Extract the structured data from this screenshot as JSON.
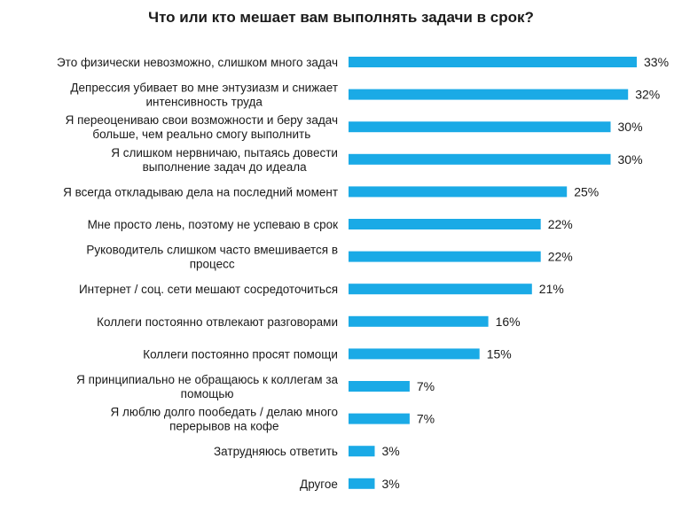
{
  "chart_data": {
    "type": "bar",
    "orientation": "horizontal",
    "title": "Что или кто мешает вам выполнять задачи в срок?",
    "bar_color": "#1AAAE6",
    "categories": [
      [
        "Это физически невозможно, слишком много задач"
      ],
      [
        "Депрессия убивает во мне энтузиазм и снижает",
        "интенсивность труда"
      ],
      [
        "Я переоцениваю свои возможности и беру задач",
        "больше, чем реально смогу выполнить"
      ],
      [
        "Я слишком нервничаю, пытаясь довести",
        "выполнение задач до идеала"
      ],
      [
        "Я всегда откладываю дела на последний момент"
      ],
      [
        "Мне просто лень, поэтому не успеваю в срок"
      ],
      [
        "Руководитель слишком часто вмешивается в",
        "процесс"
      ],
      [
        "Интернет / соц. сети мешают сосредоточиться"
      ],
      [
        "Коллеги постоянно отвлекают разговорами"
      ],
      [
        "Коллеги постоянно просят помощи"
      ],
      [
        "Я принципиально не обращаюсь к коллегам за",
        "помощью"
      ],
      [
        "Я люблю долго пообедать / делаю много",
        "перерывов на кофе"
      ],
      [
        "Затрудняюсь ответить"
      ],
      [
        "Другое"
      ]
    ],
    "values": [
      33,
      32,
      30,
      30,
      25,
      22,
      22,
      21,
      16,
      15,
      7,
      7,
      3,
      3
    ],
    "value_labels": [
      "33%",
      "32%",
      "30%",
      "30%",
      "25%",
      "22%",
      "22%",
      "21%",
      "16%",
      "15%",
      "7%",
      "7%",
      "3%",
      "3%"
    ],
    "xlim": [
      0,
      33
    ],
    "grid": false,
    "legend": "none"
  }
}
